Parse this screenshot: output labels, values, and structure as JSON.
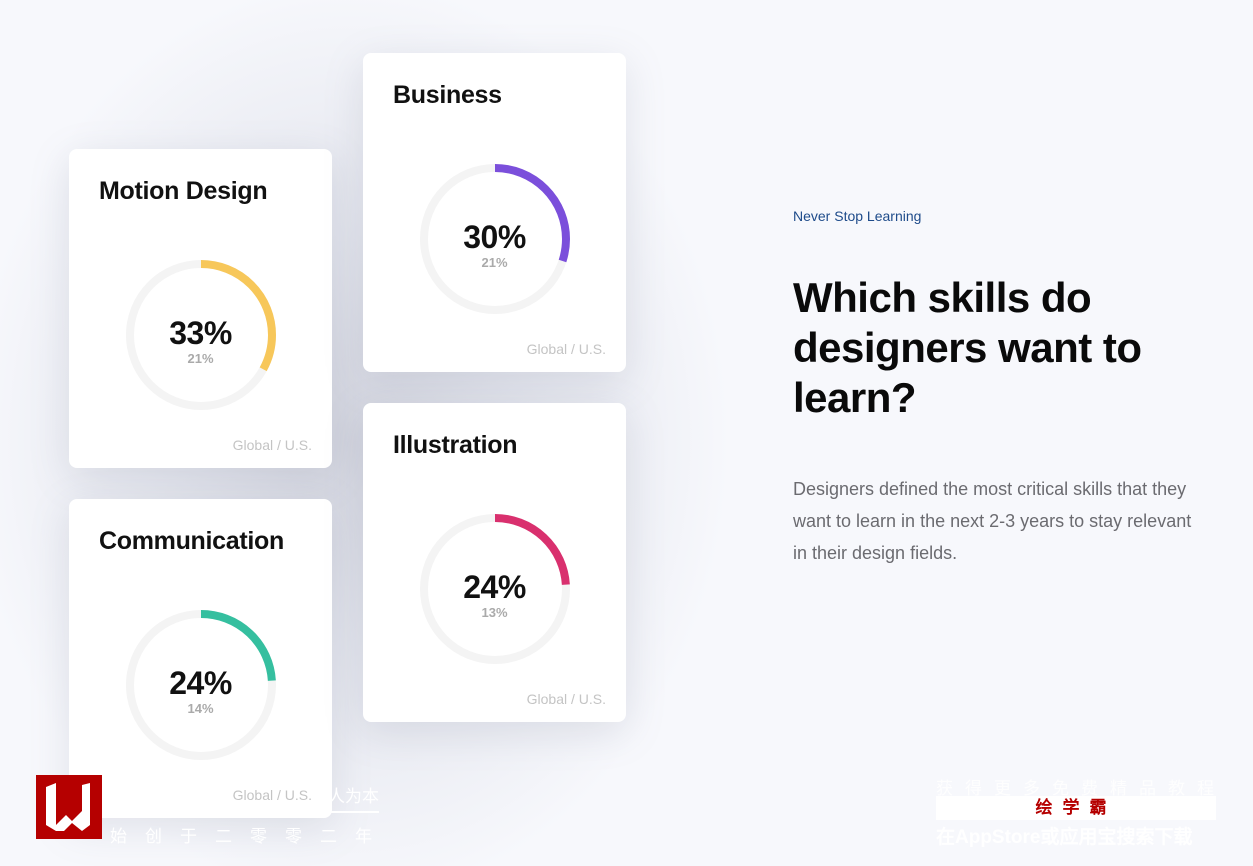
{
  "colors": {
    "motion": "#f7c75a",
    "business": "#7b4fdb",
    "communication": "#35bf9f",
    "illustration": "#d9306e",
    "track": "#f4f4f4"
  },
  "cards": [
    {
      "title": "Motion Design",
      "percent": "33%",
      "value": 33,
      "us": "21%",
      "footer": "Global / U.S."
    },
    {
      "title": "Business",
      "percent": "30%",
      "value": 30,
      "us": "21%",
      "footer": "Global / U.S."
    },
    {
      "title": "Communication",
      "percent": "24%",
      "value": 24,
      "us": "14%",
      "footer": "Global / U.S."
    },
    {
      "title": "Illustration",
      "percent": "24%",
      "value": 24,
      "us": "13%",
      "footer": "Global / U.S."
    }
  ],
  "content": {
    "eyebrow": "Never Stop Learning",
    "heading": "Which skills do designers want to learn?",
    "paragraph": "Designers defined the most critical skills that they want to learn in the next 2-3 years to stay relevant in their design fields."
  },
  "watermark": {
    "slogan": "人为本",
    "founded": "始创于二零零二年",
    "promo": "获得更多免费精品教程",
    "brand": "绘学霸",
    "download": "在AppStore或应用宝搜索下载"
  }
}
